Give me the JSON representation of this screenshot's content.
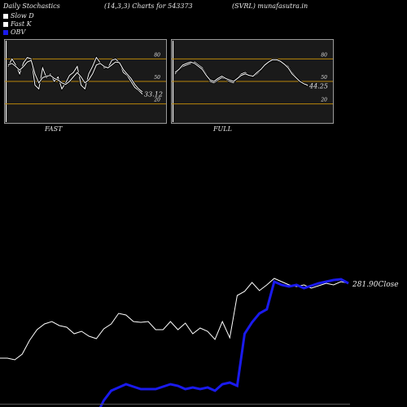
{
  "header": {
    "title": "Daily Stochastics",
    "params": "(14,3,3) Charts for 543373",
    "symbol": "(SVRL) munafasutra.in"
  },
  "legend": [
    {
      "label": "Slow  D",
      "color": "#ffffff"
    },
    {
      "label": "Fast K",
      "color": "#ffffff"
    },
    {
      "label": "OBV",
      "color": "#1a1aee"
    }
  ],
  "chart_data": [
    {
      "type": "line",
      "name": "FAST",
      "ylim": [
        0,
        100
      ],
      "yticks": [
        20,
        50,
        80
      ],
      "hlines": [
        20,
        50,
        80
      ],
      "last_value_label": "33.12",
      "series": [
        {
          "values": [
            70,
            80,
            72,
            60,
            75,
            82,
            80,
            45,
            40,
            68,
            55,
            60,
            50,
            56,
            40,
            48,
            58,
            62,
            70,
            45,
            40,
            60,
            70,
            82,
            75,
            68,
            68,
            78,
            80,
            75,
            62,
            58,
            50,
            42,
            38,
            33
          ]
        },
        {
          "values": [
            72,
            74,
            70,
            65,
            70,
            76,
            78,
            60,
            48,
            55,
            57,
            58,
            54,
            52,
            48,
            46,
            50,
            56,
            62,
            56,
            48,
            52,
            60,
            72,
            74,
            70,
            68,
            72,
            76,
            75,
            66,
            60,
            54,
            46,
            40,
            36
          ]
        }
      ]
    },
    {
      "type": "line",
      "name": "FULL",
      "ylim": [
        0,
        100
      ],
      "yticks": [
        20,
        50,
        80
      ],
      "hlines": [
        20,
        50,
        80
      ],
      "last_value_label": "44.25",
      "series": [
        {
          "values": [
            60,
            65,
            70,
            72,
            74,
            76,
            72,
            68,
            60,
            50,
            48,
            52,
            55,
            53,
            50,
            48,
            55,
            60,
            62,
            58,
            56,
            60,
            65,
            72,
            75,
            78,
            78,
            76,
            74,
            70,
            62,
            56,
            50,
            46,
            44
          ]
        },
        {
          "values": [
            62,
            66,
            72,
            74,
            76,
            74,
            70,
            66,
            58,
            52,
            50,
            54,
            57,
            54,
            52,
            50,
            54,
            58,
            60,
            58,
            57,
            62,
            66,
            72,
            76,
            79,
            79,
            77,
            73,
            68,
            60,
            55,
            50,
            47,
            45
          ]
        }
      ]
    },
    {
      "type": "line",
      "name": "price-obv",
      "close_label": "281.90Close",
      "series": [
        {
          "values": [
            440,
            440,
            442,
            435,
            418,
            405,
            398,
            395,
            400,
            402,
            410,
            407,
            413,
            416,
            404,
            398,
            385,
            387,
            395,
            396,
            395,
            405,
            405,
            395,
            405,
            397,
            410,
            403,
            407,
            417,
            395,
            415,
            363,
            358,
            347,
            357,
            350,
            342,
            346,
            350,
            352,
            350,
            354,
            351,
            348,
            350,
            346,
            348
          ]
        },
        {
          "values": [
            520,
            520,
            520,
            520,
            520,
            520,
            520,
            520,
            520,
            520,
            520,
            520,
            520,
            510,
            492,
            480,
            476,
            472,
            475,
            478,
            478,
            478,
            475,
            472,
            474,
            478,
            476,
            478,
            476,
            480,
            472,
            470,
            474,
            410,
            396,
            385,
            380,
            346,
            350,
            352,
            350,
            354,
            351,
            348,
            346,
            344,
            343,
            348
          ]
        }
      ]
    }
  ]
}
